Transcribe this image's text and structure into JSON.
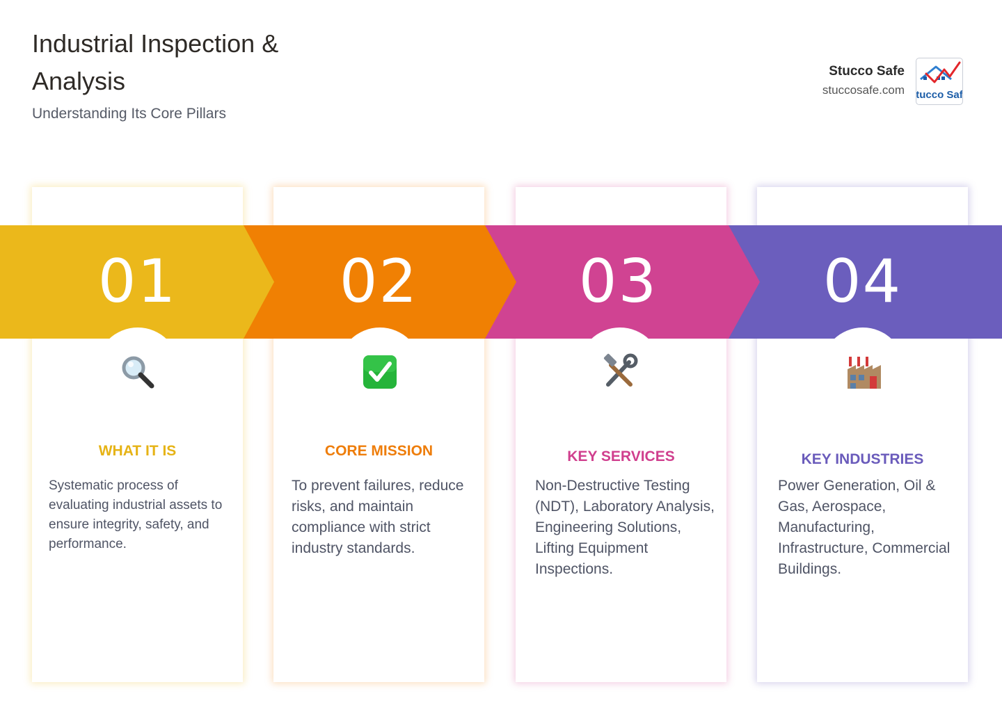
{
  "header": {
    "title": "Industrial Inspection & Analysis",
    "subtitle": "Understanding Its Core Pillars"
  },
  "brand": {
    "name": "Stucco Safe",
    "url": "stuccosafe.com",
    "logo_text": "tucco Saf"
  },
  "pillars": [
    {
      "number": "01",
      "icon": "magnifying-glass-icon",
      "title": "WHAT IT IS",
      "text": "Systematic process of evaluating industrial assets to ensure integrity, safety, and performance.",
      "color": "#EBB81B"
    },
    {
      "number": "02",
      "icon": "check-mark-button-icon",
      "title": "CORE MISSION",
      "text": "To prevent failures, reduce risks, and maintain compliance with strict industry standards.",
      "color": "#F08003"
    },
    {
      "number": "03",
      "icon": "hammer-and-wrench-icon",
      "title": "KEY SERVICES",
      "text": "Non-Destructive Testing (NDT), Laboratory Analysis, Engineering Solutions, Lifting Equipment Inspections.",
      "color": "#D04392"
    },
    {
      "number": "04",
      "icon": "factory-icon",
      "title": "KEY INDUSTRIES",
      "text": "Power Generation, Oil & Gas, Aerospace, Manufacturing, Infrastructure, Commercial Buildings.",
      "color": "#6B5EBD"
    }
  ]
}
